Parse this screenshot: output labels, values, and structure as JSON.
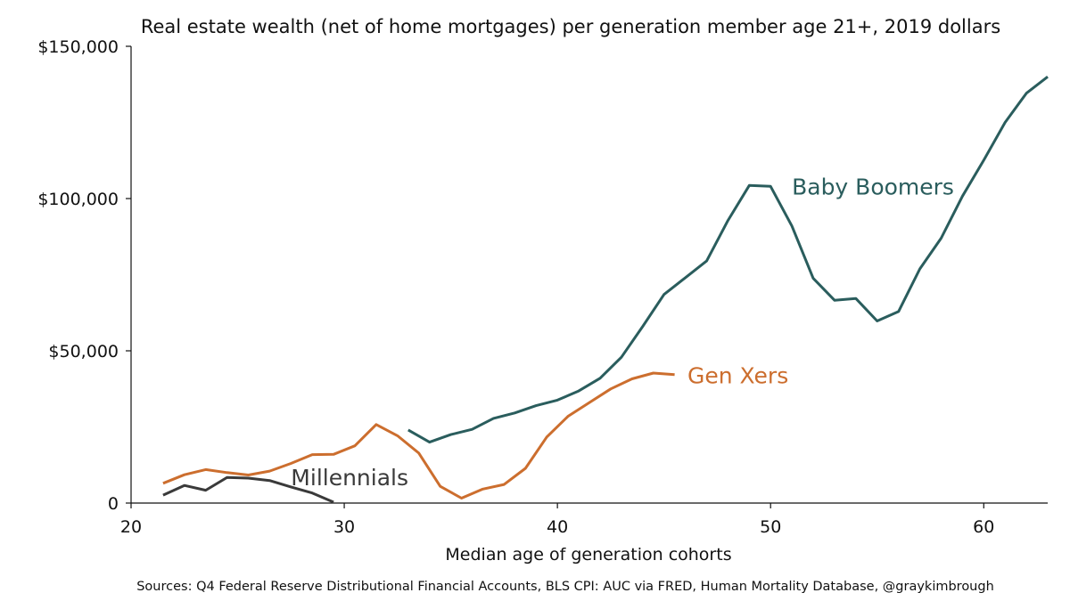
{
  "chart_data": {
    "type": "line",
    "title": "Real estate wealth (net of home mortgages) per generation member age 21+, 2019 dollars",
    "xlabel": "Median age of generation cohorts",
    "ylabel": "",
    "source": "Sources: Q4 Federal Reserve Distributional Financial Accounts, BLS CPI: AUC via FRED, Human Mortality Database, @graykimbrough",
    "xlim": [
      20,
      63
    ],
    "ylim": [
      0,
      150000
    ],
    "xticks": [
      {
        "value": 20,
        "label": "20"
      },
      {
        "value": 30,
        "label": "30"
      },
      {
        "value": 40,
        "label": "40"
      },
      {
        "value": 50,
        "label": "50"
      },
      {
        "value": 60,
        "label": "60"
      }
    ],
    "yticks": [
      {
        "value": 0,
        "label": "0"
      },
      {
        "value": 50000,
        "label": "$50,000"
      },
      {
        "value": 100000,
        "label": "$100,000"
      },
      {
        "value": 150000,
        "label": "$150,000"
      }
    ],
    "grid": false,
    "legend": "none (series labelled directly on lines)",
    "series": [
      {
        "name": "Baby Boomers",
        "color": "#2a5d5d",
        "label_anchor": {
          "x": 51,
          "y": 104000
        },
        "x": [
          33,
          34,
          35,
          36,
          37,
          38,
          39,
          40,
          41,
          42,
          43,
          44,
          45,
          46,
          47,
          48,
          49,
          50,
          51,
          52,
          53,
          54,
          55,
          56,
          57,
          58,
          59,
          60,
          61,
          62,
          63
        ],
        "values": [
          24000,
          20000,
          22500,
          24200,
          27800,
          29600,
          32000,
          33800,
          36800,
          41000,
          47900,
          58000,
          68500,
          74000,
          79500,
          92800,
          104300,
          104000,
          91000,
          73800,
          66600,
          67200,
          59800,
          62900,
          76900,
          87000,
          100800,
          112600,
          125000,
          134600,
          140000
        ]
      },
      {
        "name": "Gen Xers",
        "color": "#cc6e2e",
        "label_anchor": {
          "x": 46.1,
          "y": 42000
        },
        "x": [
          21.5,
          22.5,
          23.5,
          24.5,
          25.5,
          26.5,
          27.5,
          28.5,
          29.5,
          30.5,
          31.5,
          32.5,
          33.5,
          34.5,
          35.5,
          36.5,
          37.5,
          38.5,
          39.5,
          40.5,
          41.5,
          42.5,
          43.5,
          44.5,
          45.5
        ],
        "values": [
          6500,
          9300,
          11000,
          10000,
          9200,
          10500,
          13000,
          15900,
          16000,
          18800,
          25800,
          22100,
          16400,
          5500,
          1600,
          4600,
          6100,
          11400,
          21700,
          28500,
          33000,
          37500,
          40800,
          42700,
          42200
        ]
      },
      {
        "name": "Millennials",
        "color": "#3a3a3a",
        "label_anchor": {
          "x": 27.5,
          "y": 8500
        },
        "x": [
          21.5,
          22.5,
          23.5,
          24.5,
          25.5,
          26.5,
          27.5,
          28.5,
          29.5
        ],
        "values": [
          2600,
          5800,
          4200,
          8400,
          8200,
          7400,
          5300,
          3300,
          300
        ]
      }
    ]
  }
}
